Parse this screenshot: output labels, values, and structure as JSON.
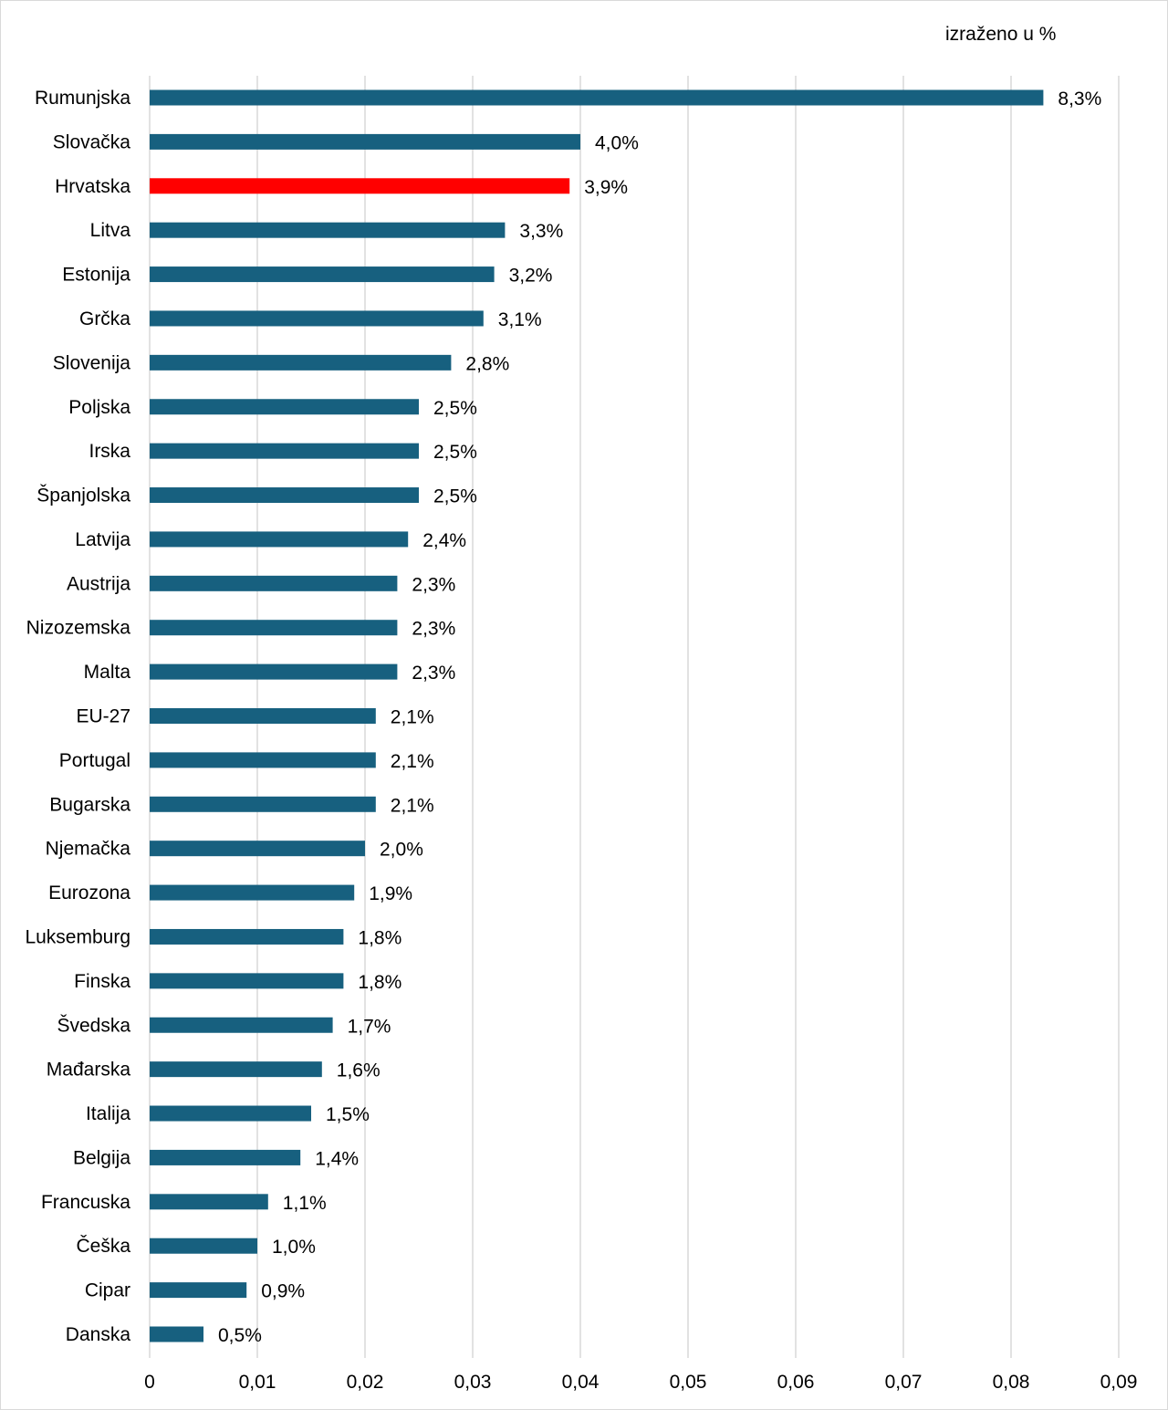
{
  "chart_data": {
    "type": "bar",
    "orientation": "horizontal",
    "unit_label": "izraženo u %",
    "categories": [
      "Rumunjska",
      "Slovačka",
      "Hrvatska",
      "Litva",
      "Estonija",
      "Grčka",
      "Slovenija",
      "Poljska",
      "Irska",
      "Španjolska",
      "Latvija",
      "Austrija",
      "Nizozemska",
      "Malta",
      "EU-27",
      "Portugal",
      "Bugarska",
      "Njemačka",
      "Eurozona",
      "Luksemburg",
      "Finska",
      "Švedska",
      "Mađarska",
      "Italija",
      "Belgija",
      "Francuska",
      "Češka",
      "Cipar",
      "Danska"
    ],
    "values": [
      0.083,
      0.04,
      0.039,
      0.033,
      0.032,
      0.031,
      0.028,
      0.025,
      0.025,
      0.025,
      0.024,
      0.023,
      0.023,
      0.023,
      0.021,
      0.021,
      0.021,
      0.02,
      0.019,
      0.018,
      0.018,
      0.017,
      0.016,
      0.015,
      0.014,
      0.011,
      0.01,
      0.009,
      0.005
    ],
    "data_labels": [
      "8,3%",
      "4,0%",
      "3,9%",
      "3,3%",
      "3,2%",
      "3,1%",
      "2,8%",
      "2,5%",
      "2,5%",
      "2,5%",
      "2,4%",
      "2,3%",
      "2,3%",
      "2,3%",
      "2,1%",
      "2,1%",
      "2,1%",
      "2,0%",
      "1,9%",
      "1,8%",
      "1,8%",
      "1,7%",
      "1,6%",
      "1,5%",
      "1,4%",
      "1,1%",
      "1,0%",
      "0,9%",
      "0,5%"
    ],
    "highlight": "Hrvatska",
    "xlim": [
      0,
      0.09
    ],
    "xticks": [
      0,
      0.01,
      0.02,
      0.03,
      0.04,
      0.05,
      0.06,
      0.07,
      0.08,
      0.09
    ],
    "xtick_labels": [
      "0",
      "0,01",
      "0,02",
      "0,03",
      "0,04",
      "0,05",
      "0,06",
      "0,07",
      "0,08",
      "0,09"
    ],
    "grid": "vertical",
    "colors": {
      "bar": "#17607f",
      "highlight": "#ff0000",
      "grid": "#d9d9d9"
    }
  }
}
